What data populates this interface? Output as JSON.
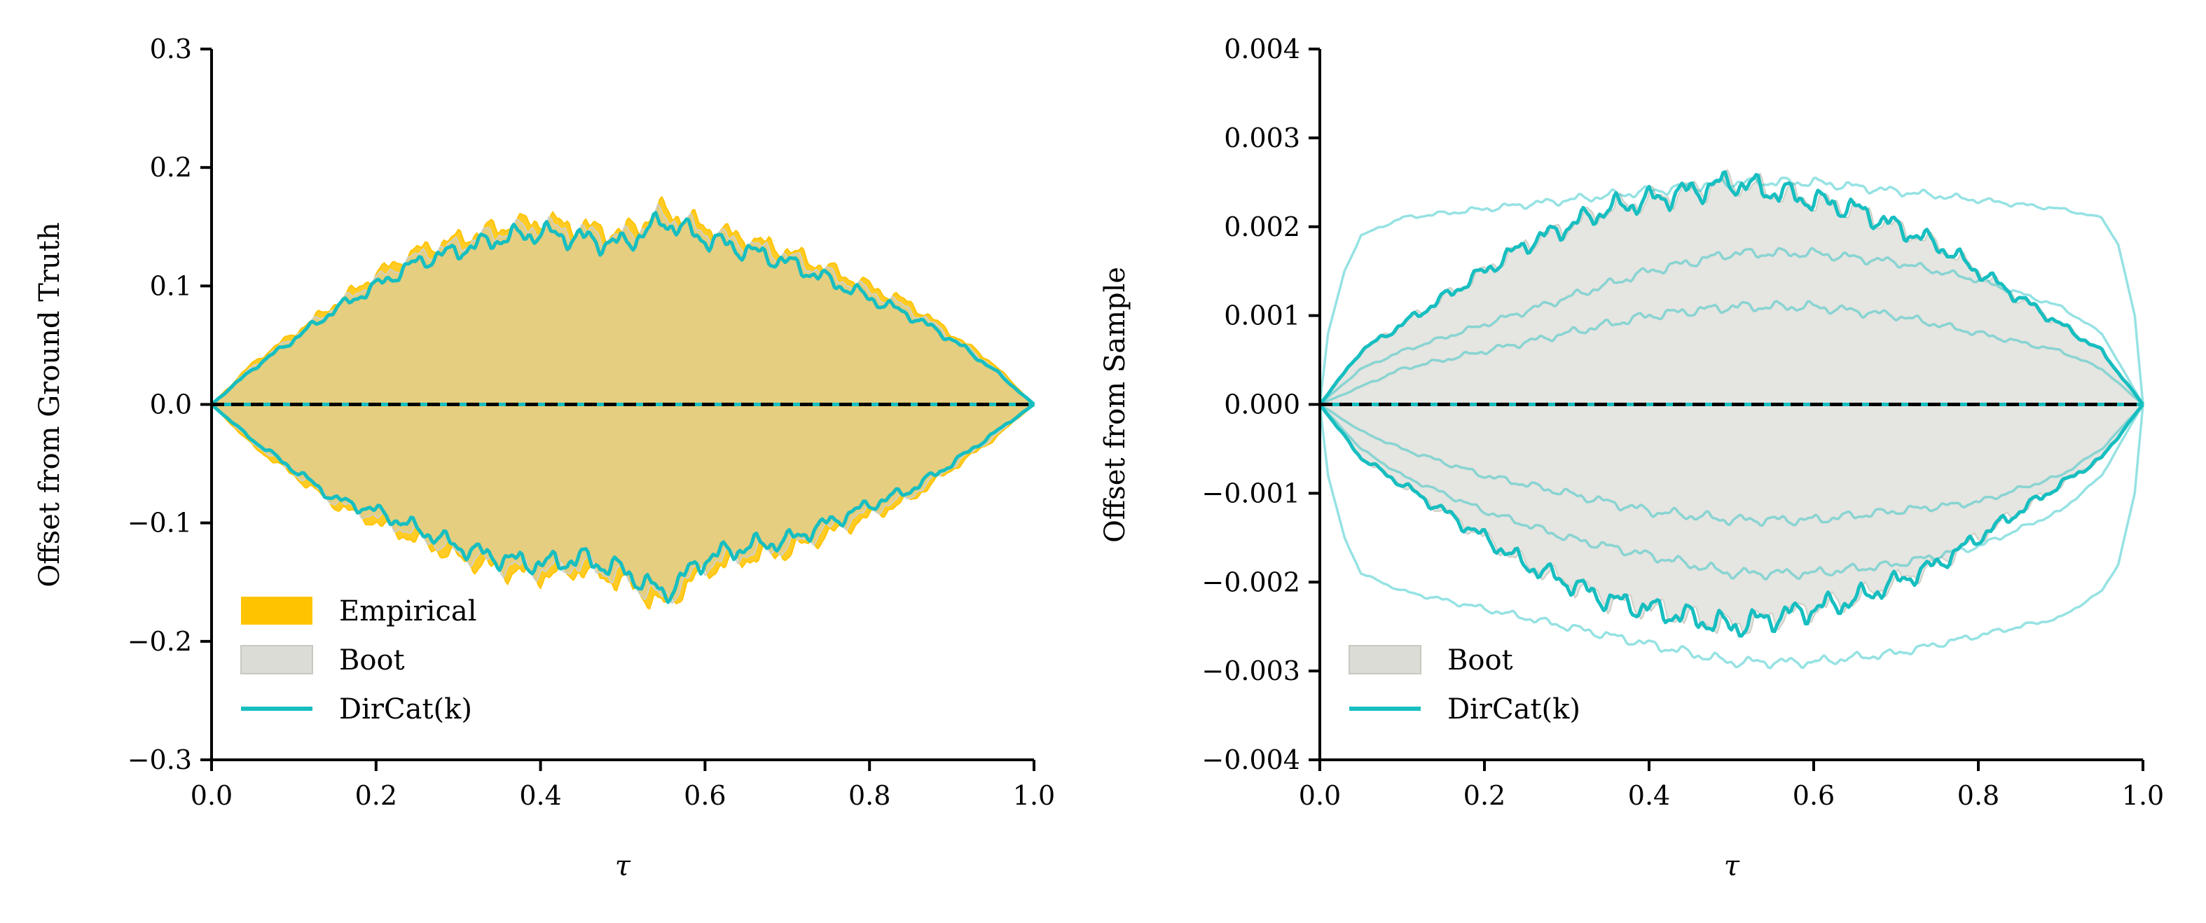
{
  "chart_data": [
    {
      "type": "area",
      "panel": "left",
      "xlabel": "τ",
      "ylabel": "Offset from Ground Truth",
      "xlim": [
        0.0,
        1.0
      ],
      "ylim": [
        -0.3,
        0.3
      ],
      "xticks": [
        "0.0",
        "0.2",
        "0.4",
        "0.6",
        "0.8",
        "1.0"
      ],
      "yticks": [
        "−0.3",
        "−0.2",
        "−0.1",
        "0.0",
        "0.1",
        "0.2",
        "0.3"
      ],
      "ytick_values": [
        -0.3,
        -0.2,
        -0.1,
        0.0,
        0.1,
        0.2,
        0.3
      ],
      "grid": false,
      "legend_position": "lower-left",
      "reference_line": {
        "y": 0.0,
        "style": "dashed",
        "color": "#000000"
      },
      "series": [
        {
          "name": "Empirical",
          "kind": "band",
          "color": "#ffc300",
          "x": [
            0.0,
            0.05,
            0.1,
            0.15,
            0.2,
            0.25,
            0.3,
            0.35,
            0.4,
            0.45,
            0.5,
            0.55,
            0.6,
            0.65,
            0.7,
            0.75,
            0.8,
            0.85,
            0.9,
            0.95,
            1.0
          ],
          "upper": [
            0.0,
            0.035,
            0.06,
            0.085,
            0.11,
            0.13,
            0.14,
            0.15,
            0.155,
            0.15,
            0.145,
            0.165,
            0.15,
            0.14,
            0.13,
            0.115,
            0.1,
            0.085,
            0.06,
            0.035,
            0.0
          ],
          "lower": [
            0.0,
            -0.035,
            -0.06,
            -0.085,
            -0.1,
            -0.115,
            -0.13,
            -0.14,
            -0.145,
            -0.14,
            -0.15,
            -0.17,
            -0.14,
            -0.13,
            -0.125,
            -0.11,
            -0.095,
            -0.08,
            -0.055,
            -0.03,
            0.0
          ]
        },
        {
          "name": "Boot",
          "kind": "band",
          "color": "#d0d0c8",
          "x": [
            0.0,
            0.05,
            0.1,
            0.15,
            0.2,
            0.25,
            0.3,
            0.35,
            0.4,
            0.45,
            0.5,
            0.55,
            0.6,
            0.65,
            0.7,
            0.75,
            0.8,
            0.85,
            0.9,
            0.95,
            1.0
          ],
          "upper": [
            0.0,
            0.032,
            0.057,
            0.082,
            0.105,
            0.125,
            0.135,
            0.145,
            0.15,
            0.145,
            0.14,
            0.16,
            0.145,
            0.135,
            0.125,
            0.11,
            0.095,
            0.08,
            0.057,
            0.032,
            0.0
          ],
          "lower": [
            0.0,
            -0.032,
            -0.057,
            -0.082,
            -0.095,
            -0.11,
            -0.125,
            -0.135,
            -0.14,
            -0.135,
            -0.145,
            -0.165,
            -0.135,
            -0.125,
            -0.12,
            -0.105,
            -0.09,
            -0.077,
            -0.052,
            -0.028,
            0.0
          ]
        },
        {
          "name": "DirCat(k)",
          "kind": "line-pair",
          "color": "#17bec0",
          "x": [
            0.0,
            0.05,
            0.1,
            0.15,
            0.2,
            0.25,
            0.3,
            0.35,
            0.4,
            0.45,
            0.5,
            0.55,
            0.6,
            0.65,
            0.7,
            0.75,
            0.8,
            0.85,
            0.9,
            0.95,
            1.0
          ],
          "upper": [
            0.0,
            0.03,
            0.055,
            0.08,
            0.1,
            0.12,
            0.13,
            0.14,
            0.145,
            0.14,
            0.135,
            0.155,
            0.14,
            0.13,
            0.12,
            0.105,
            0.09,
            0.075,
            0.055,
            0.03,
            0.0
          ],
          "lower": [
            0.0,
            -0.03,
            -0.055,
            -0.08,
            -0.09,
            -0.105,
            -0.12,
            -0.13,
            -0.135,
            -0.13,
            -0.14,
            -0.16,
            -0.13,
            -0.12,
            -0.115,
            -0.1,
            -0.085,
            -0.072,
            -0.05,
            -0.025,
            0.0
          ]
        }
      ],
      "legend": [
        "Empirical",
        "Boot",
        "DirCat(k)"
      ]
    },
    {
      "type": "area",
      "panel": "right",
      "xlabel": "τ",
      "ylabel": "Offset from Sample",
      "xlim": [
        0.0,
        1.0
      ],
      "ylim": [
        -0.004,
        0.004
      ],
      "xticks": [
        "0.0",
        "0.2",
        "0.4",
        "0.6",
        "0.8",
        "1.0"
      ],
      "yticks": [
        "−0.004",
        "−0.003",
        "−0.002",
        "−0.001",
        "0.000",
        "0.001",
        "0.002",
        "0.003",
        "0.004"
      ],
      "ytick_values": [
        -0.004,
        -0.003,
        -0.002,
        -0.001,
        0.0,
        0.001,
        0.002,
        0.003,
        0.004
      ],
      "grid": false,
      "legend_position": "lower-left",
      "reference_line": {
        "y": 0.0,
        "style": "dashed",
        "color": "#000000"
      },
      "series": [
        {
          "name": "Boot",
          "kind": "band",
          "color": "#d0d0c8",
          "x": [
            0.0,
            0.05,
            0.1,
            0.15,
            0.2,
            0.25,
            0.3,
            0.35,
            0.4,
            0.45,
            0.5,
            0.55,
            0.6,
            0.65,
            0.7,
            0.75,
            0.8,
            0.85,
            0.9,
            0.95,
            1.0
          ],
          "upper": [
            0.0,
            0.0006,
            0.0009,
            0.0012,
            0.0015,
            0.0018,
            0.002,
            0.0022,
            0.0023,
            0.0024,
            0.0025,
            0.0024,
            0.0023,
            0.0022,
            0.002,
            0.0018,
            0.0015,
            0.0012,
            0.0009,
            0.0006,
            0.0
          ],
          "lower": [
            0.0,
            -0.0006,
            -0.0009,
            -0.0012,
            -0.0015,
            -0.0018,
            -0.002,
            -0.0022,
            -0.0023,
            -0.0024,
            -0.0025,
            -0.0024,
            -0.0023,
            -0.0022,
            -0.002,
            -0.0018,
            -0.0015,
            -0.0012,
            -0.0009,
            -0.0006,
            0.0
          ]
        },
        {
          "name": "DirCat(k)",
          "kind": "line-pair",
          "color": "#17bec0",
          "x": [
            0.0,
            0.05,
            0.1,
            0.15,
            0.2,
            0.25,
            0.3,
            0.35,
            0.4,
            0.45,
            0.5,
            0.55,
            0.6,
            0.65,
            0.7,
            0.75,
            0.8,
            0.85,
            0.9,
            0.95,
            1.0
          ],
          "upper": [
            0.0,
            0.0006,
            0.0009,
            0.0012,
            0.0015,
            0.0018,
            0.002,
            0.0022,
            0.0023,
            0.0024,
            0.0025,
            0.0024,
            0.0023,
            0.0022,
            0.002,
            0.0018,
            0.0015,
            0.0012,
            0.0009,
            0.0006,
            0.0
          ],
          "lower": [
            0.0,
            -0.0006,
            -0.0009,
            -0.0012,
            -0.0015,
            -0.0018,
            -0.002,
            -0.0022,
            -0.0023,
            -0.0024,
            -0.0025,
            -0.0024,
            -0.0023,
            -0.0022,
            -0.002,
            -0.0018,
            -0.0015,
            -0.0012,
            -0.0009,
            -0.0006,
            0.0
          ]
        },
        {
          "name": "",
          "kind": "faint-line-pair",
          "color": "#17bec0",
          "x": [
            0.0,
            0.01,
            0.03,
            0.05,
            0.1,
            0.2,
            0.3,
            0.4,
            0.5,
            0.6,
            0.7,
            0.8,
            0.9,
            0.95,
            0.97,
            0.99,
            1.0
          ],
          "upper": [
            0.0,
            0.0008,
            0.0015,
            0.0019,
            0.0021,
            0.0022,
            0.0023,
            0.0024,
            0.0025,
            0.0025,
            0.0024,
            0.0023,
            0.0022,
            0.0021,
            0.0018,
            0.001,
            0.0
          ],
          "lower": [
            0.0,
            -0.0008,
            -0.0015,
            -0.0019,
            -0.0021,
            -0.0023,
            -0.0025,
            -0.0027,
            -0.0029,
            -0.0029,
            -0.0028,
            -0.0026,
            -0.0024,
            -0.0021,
            -0.0018,
            -0.001,
            0.0
          ]
        },
        {
          "name": "",
          "kind": "faint-line-pair",
          "color": "#17bec0",
          "x": [
            0.0,
            0.05,
            0.1,
            0.2,
            0.3,
            0.4,
            0.5,
            0.6,
            0.7,
            0.8,
            0.9,
            0.95,
            1.0
          ],
          "upper": [
            0.0,
            0.0004,
            0.0006,
            0.0009,
            0.0012,
            0.0015,
            0.0017,
            0.0017,
            0.0016,
            0.0014,
            0.0011,
            0.0008,
            0.0
          ],
          "lower": [
            0.0,
            -0.0005,
            -0.0008,
            -0.0012,
            -0.0015,
            -0.0017,
            -0.0019,
            -0.0019,
            -0.0018,
            -0.0016,
            -0.0012,
            -0.0008,
            0.0
          ]
        },
        {
          "name": "",
          "kind": "faint-line-pair",
          "color": "#17bec0",
          "x": [
            0.0,
            0.05,
            0.1,
            0.2,
            0.3,
            0.4,
            0.5,
            0.6,
            0.7,
            0.8,
            0.9,
            0.95,
            1.0
          ],
          "upper": [
            0.0,
            0.0002,
            0.0004,
            0.0006,
            0.0008,
            0.001,
            0.0011,
            0.0011,
            0.001,
            0.0008,
            0.0006,
            0.0004,
            0.0
          ],
          "lower": [
            0.0,
            -0.0003,
            -0.0005,
            -0.0008,
            -0.001,
            -0.0012,
            -0.0013,
            -0.0013,
            -0.0012,
            -0.0011,
            -0.0008,
            -0.0005,
            0.0
          ]
        }
      ],
      "legend": [
        "Boot",
        "DirCat(k)"
      ]
    }
  ]
}
